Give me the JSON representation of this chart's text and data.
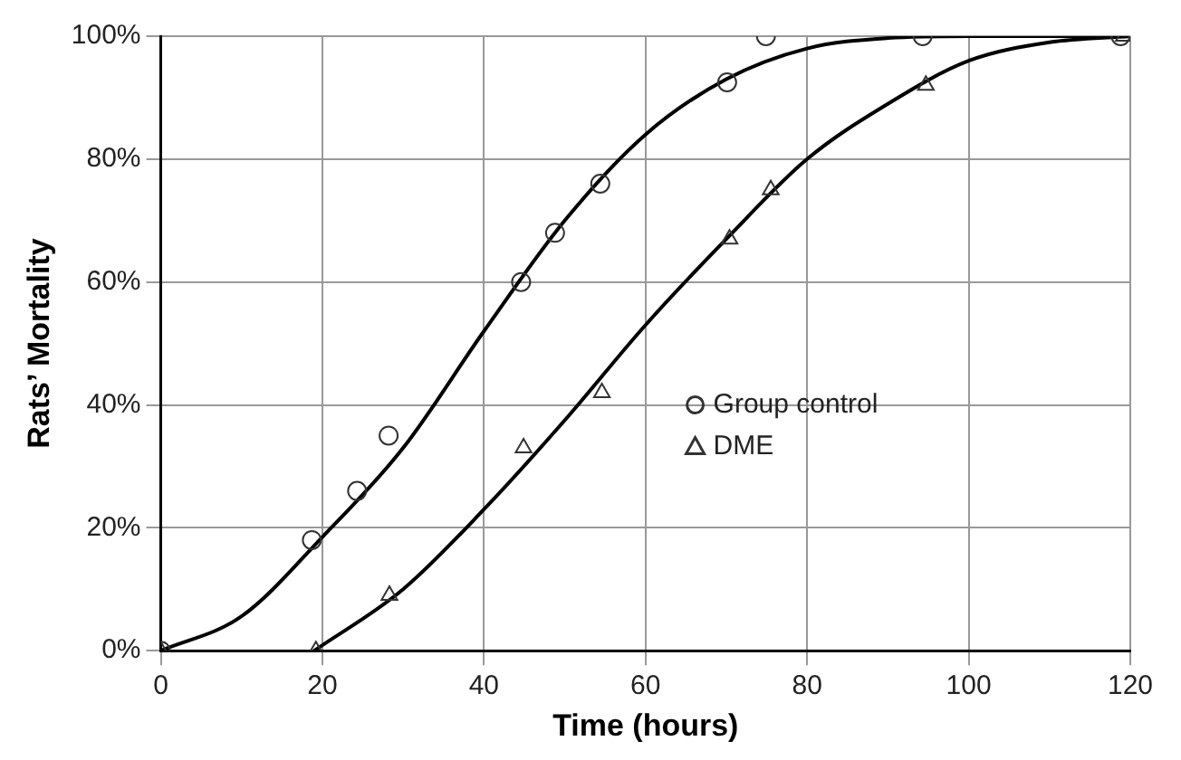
{
  "chart_data": {
    "type": "scatter",
    "xlabel": "Time (hours)",
    "ylabel": "Rats’ Mortality",
    "xlim": [
      0,
      120
    ],
    "xticks": [
      0,
      20,
      40,
      60,
      80,
      100,
      120
    ],
    "ylim": [
      0,
      100
    ],
    "yticks": [
      {
        "value": 0,
        "label": "0%"
      },
      {
        "value": 20,
        "label": "20%"
      },
      {
        "value": 40,
        "label": "40%"
      },
      {
        "value": 60,
        "label": "60%"
      },
      {
        "value": 80,
        "label": "80%"
      },
      {
        "value": 100,
        "label": "100%"
      }
    ],
    "grid": true,
    "legend": "right",
    "series": [
      {
        "name": "Group control",
        "marker": "circle",
        "color": "#333333",
        "x": [
          0,
          18.7,
          24.3,
          28.2,
          44.6,
          48.8,
          54.4,
          70.1,
          74.9,
          94.3,
          118.8
        ],
        "values": [
          0,
          18,
          26,
          35,
          60,
          68,
          76,
          92.5,
          100,
          100,
          100
        ]
      },
      {
        "name": "DME",
        "marker": "triangle",
        "color": "#333333",
        "x": [
          0,
          19.2,
          28.3,
          44.9,
          54.6,
          70.4,
          75.5,
          94.7,
          119.2
        ],
        "values": [
          0,
          0,
          9,
          33,
          42,
          67,
          75,
          92,
          100
        ]
      },
      {
        "type": "line",
        "marker": "none",
        "color": "#000000",
        "x": [
          0,
          10,
          20,
          30,
          40,
          50,
          60,
          70,
          80,
          90,
          100,
          120
        ],
        "values": [
          0,
          5.6,
          18.5,
          33,
          52,
          70,
          84,
          93,
          98,
          99.7,
          100,
          100
        ]
      },
      {
        "type": "line",
        "marker": "none",
        "color": "#000000",
        "x": [
          19,
          30,
          40,
          50,
          60,
          70,
          80,
          90,
          100,
          110,
          120
        ],
        "values": [
          0,
          10,
          23,
          37.5,
          53,
          67,
          80,
          89,
          96,
          99,
          100
        ]
      }
    ]
  }
}
